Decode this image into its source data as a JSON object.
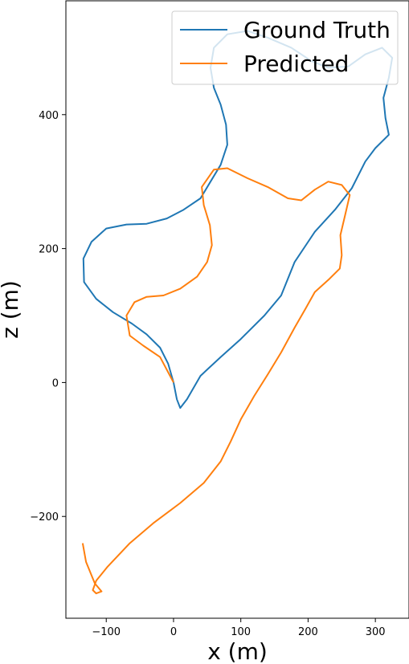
{
  "chart_data": {
    "type": "line",
    "xlabel": "x (m)",
    "ylabel": "z (m)",
    "xlim": [
      -160,
      350
    ],
    "ylim": [
      -352,
      570
    ],
    "x_ticks": [
      -100,
      0,
      100,
      200,
      300
    ],
    "y_ticks": [
      -200,
      0,
      200,
      400
    ],
    "grid": false,
    "legend_position": "top-right",
    "series": [
      {
        "name": "Ground Truth",
        "color": "#1f77b4",
        "points": [
          [
            0,
            0
          ],
          [
            -8,
            28
          ],
          [
            -20,
            52
          ],
          [
            -40,
            72
          ],
          [
            -62,
            88
          ],
          [
            -90,
            105
          ],
          [
            -115,
            125
          ],
          [
            -133,
            150
          ],
          [
            -134,
            185
          ],
          [
            -122,
            210
          ],
          [
            -100,
            230
          ],
          [
            -70,
            236
          ],
          [
            -40,
            237
          ],
          [
            -10,
            245
          ],
          [
            15,
            258
          ],
          [
            40,
            275
          ],
          [
            55,
            300
          ],
          [
            70,
            325
          ],
          [
            80,
            355
          ],
          [
            78,
            385
          ],
          [
            70,
            415
          ],
          [
            60,
            440
          ],
          [
            55,
            470
          ],
          [
            60,
            500
          ],
          [
            80,
            520
          ],
          [
            110,
            525
          ],
          [
            140,
            515
          ],
          [
            175,
            500
          ],
          [
            205,
            480
          ],
          [
            230,
            470
          ],
          [
            260,
            472
          ],
          [
            285,
            490
          ],
          [
            310,
            500
          ],
          [
            325,
            485
          ],
          [
            320,
            455
          ],
          [
            312,
            425
          ],
          [
            315,
            395
          ],
          [
            320,
            370
          ],
          [
            300,
            350
          ],
          [
            285,
            330
          ],
          [
            265,
            290
          ],
          [
            240,
            258
          ],
          [
            210,
            225
          ],
          [
            180,
            180
          ],
          [
            160,
            130
          ],
          [
            135,
            100
          ],
          [
            100,
            65
          ],
          [
            70,
            38
          ],
          [
            40,
            10
          ],
          [
            20,
            -25
          ],
          [
            10,
            -38
          ],
          [
            5,
            -25
          ],
          [
            0,
            0
          ]
        ]
      },
      {
        "name": "Predicted",
        "color": "#ff7f0e",
        "points": [
          [
            0,
            0
          ],
          [
            -20,
            38
          ],
          [
            -45,
            55
          ],
          [
            -65,
            70
          ],
          [
            -70,
            100
          ],
          [
            -58,
            120
          ],
          [
            -40,
            128
          ],
          [
            -15,
            130
          ],
          [
            10,
            140
          ],
          [
            35,
            158
          ],
          [
            50,
            180
          ],
          [
            57,
            205
          ],
          [
            54,
            235
          ],
          [
            45,
            265
          ],
          [
            42,
            292
          ],
          [
            60,
            318
          ],
          [
            80,
            320
          ],
          [
            110,
            305
          ],
          [
            140,
            292
          ],
          [
            170,
            275
          ],
          [
            190,
            272
          ],
          [
            210,
            288
          ],
          [
            230,
            300
          ],
          [
            250,
            295
          ],
          [
            262,
            280
          ],
          [
            255,
            250
          ],
          [
            248,
            220
          ],
          [
            250,
            190
          ],
          [
            247,
            170
          ],
          [
            232,
            155
          ],
          [
            210,
            135
          ],
          [
            195,
            108
          ],
          [
            180,
            82
          ],
          [
            160,
            45
          ],
          [
            140,
            12
          ],
          [
            120,
            -20
          ],
          [
            100,
            -55
          ],
          [
            85,
            -88
          ],
          [
            70,
            -118
          ],
          [
            45,
            -150
          ],
          [
            10,
            -180
          ],
          [
            -30,
            -210
          ],
          [
            -65,
            -240
          ],
          [
            -98,
            -275
          ],
          [
            -115,
            -296
          ],
          [
            -120,
            -310
          ],
          [
            -115,
            -315
          ],
          [
            -107,
            -312
          ],
          [
            -117,
            -300
          ],
          [
            -130,
            -268
          ],
          [
            -135,
            -240
          ]
        ]
      }
    ]
  }
}
